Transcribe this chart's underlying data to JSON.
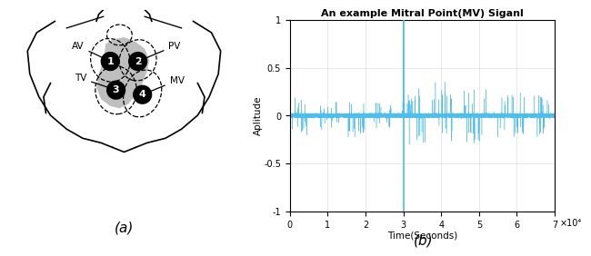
{
  "title": "An example Mitral Point(MV) Siganl",
  "xlabel": "Time(Seconds)",
  "ylabel": "Aplitude",
  "xlim": [
    0,
    70000
  ],
  "ylim": [
    -1,
    1
  ],
  "xticks": [
    0,
    10000,
    20000,
    30000,
    40000,
    50000,
    60000,
    70000
  ],
  "xtick_labels": [
    "0",
    "1",
    "2",
    "3",
    "4",
    "5",
    "6",
    "7"
  ],
  "xscale_label": "×10⁴",
  "yticks": [
    -1,
    -0.5,
    0,
    0.5,
    1
  ],
  "signal_color": "#4DBEEE",
  "dark_signal_color": "#0072BD",
  "vertical_line_x": 30000,
  "vertical_line_color": "#4DBEEE",
  "label_a": "(a)",
  "label_b": "(b)",
  "fig_width": 6.4,
  "fig_height": 2.81,
  "dpi": 100,
  "noise_seed": 7,
  "n_samples": 70000
}
